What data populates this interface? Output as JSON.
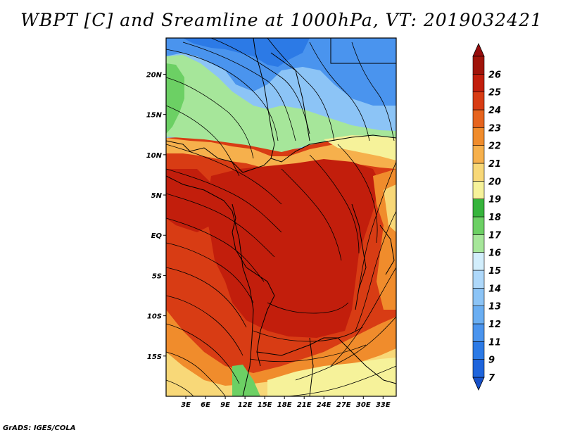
{
  "title": "WBPT [C] and Sreamline at 1000hPa, VT: 2019032421",
  "footer": "GrADS: IGES/COLA",
  "map": {
    "lat_labels": [
      "20N",
      "15N",
      "10N",
      "5N",
      "EQ",
      "5S",
      "10S",
      "15S"
    ],
    "lat_values": [
      20,
      15,
      10,
      5,
      0,
      -5,
      -10,
      -15
    ],
    "lon_labels": [
      "3E",
      "6E",
      "9E",
      "12E",
      "15E",
      "18E",
      "21E",
      "24E",
      "27E",
      "30E",
      "33E"
    ],
    "lon_values": [
      3,
      6,
      9,
      12,
      15,
      18,
      21,
      24,
      27,
      30,
      33
    ],
    "lon_range": [
      0,
      35
    ],
    "lat_range": [
      -20,
      24.5
    ]
  },
  "colorbar": {
    "labels": [
      "7",
      "9",
      "11",
      "12",
      "13",
      "14",
      "15",
      "16",
      "17",
      "18",
      "19",
      "20",
      "21",
      "22",
      "23",
      "24",
      "25",
      "26"
    ],
    "colors": [
      "#1e64dc",
      "#2c7ae6",
      "#4a94ee",
      "#6aaef2",
      "#8cc4f6",
      "#aed8fa",
      "#d2eefc",
      "#a6e69a",
      "#6cd064",
      "#36b43c",
      "#f6f29a",
      "#f8d878",
      "#f6b04c",
      "#f08c2c",
      "#e6641e",
      "#d83c14",
      "#c21e0c",
      "#a0140a"
    ],
    "lower_color": "#1650c8",
    "upper_color": "#960c0c"
  }
}
